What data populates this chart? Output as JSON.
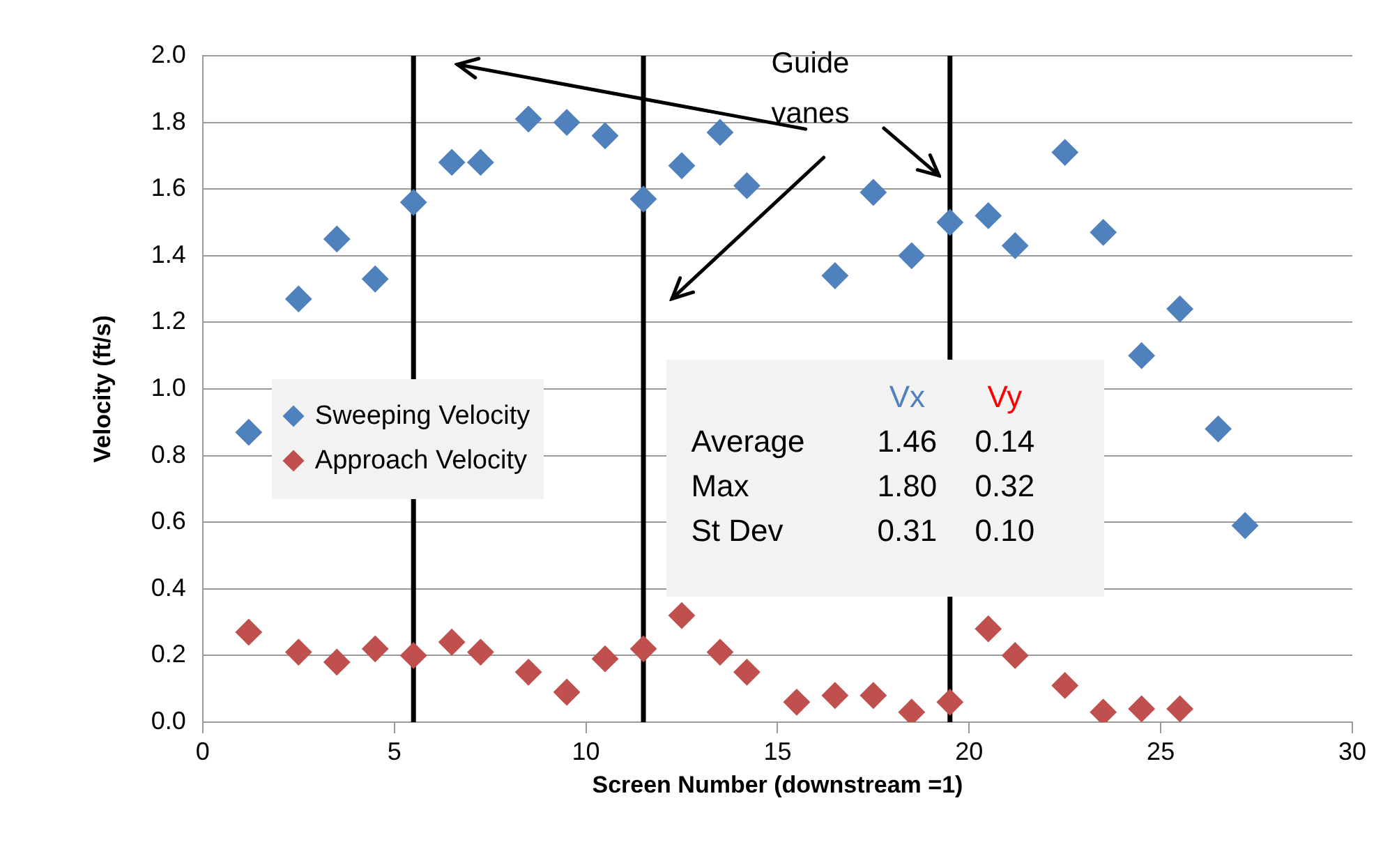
{
  "chart_data": {
    "type": "scatter",
    "xlabel": "Screen Number (downstream =1)",
    "ylabel": "Velocity (ft/s)",
    "series": [
      {
        "name": "Sweeping Velocity",
        "color": "#4f81bd",
        "x": [
          1.2,
          2.5,
          3.5,
          4.5,
          5.5,
          6.5,
          7.25,
          8.5,
          9.5,
          10.5,
          11.5,
          12.5,
          13.5,
          14.2,
          16.5,
          17.5,
          18.5,
          19.5,
          20.5,
          21.2,
          22.5,
          23.5,
          24.5,
          25.5,
          26.5,
          27.2
        ],
        "values": [
          0.87,
          1.27,
          1.45,
          1.33,
          1.56,
          1.68,
          1.68,
          1.81,
          1.8,
          1.76,
          1.57,
          1.67,
          1.77,
          1.61,
          1.34,
          1.59,
          1.4,
          1.5,
          1.52,
          1.43,
          1.71,
          1.47,
          1.1,
          1.24,
          0.88,
          0.59
        ]
      },
      {
        "name": "Approach Velocity",
        "color": "#c0504d",
        "x": [
          1.2,
          2.5,
          3.5,
          4.5,
          5.5,
          6.5,
          7.25,
          8.5,
          9.5,
          10.5,
          11.5,
          12.5,
          13.5,
          14.2,
          15.5,
          16.5,
          17.5,
          18.5,
          19.5,
          20.5,
          21.2,
          22.5,
          23.5,
          24.5,
          25.5
        ],
        "values": [
          0.27,
          0.21,
          0.18,
          0.22,
          0.2,
          0.24,
          0.21,
          0.15,
          0.09,
          0.19,
          0.22,
          0.32,
          0.21,
          0.15,
          0.06,
          0.08,
          0.08,
          0.03,
          0.06,
          0.28,
          0.2,
          0.11,
          0.03,
          0.04,
          0.04
        ]
      }
    ],
    "xlim": [
      0,
      30
    ],
    "xticks": [
      0,
      5,
      10,
      15,
      20,
      25,
      30
    ],
    "ylim": [
      0,
      2
    ],
    "yticks": [
      {
        "value": 0,
        "label": "0.0"
      },
      {
        "value": 0.2,
        "label": "0.2"
      },
      {
        "value": 0.4,
        "label": "0.4"
      },
      {
        "value": 0.6,
        "label": "0.6"
      },
      {
        "value": 0.8,
        "label": "0.8"
      },
      {
        "value": 1,
        "label": "1.0"
      },
      {
        "value": 1.2,
        "label": "1.2"
      },
      {
        "value": 1.4,
        "label": "1.4"
      },
      {
        "value": 1.6,
        "label": "1.6"
      },
      {
        "value": 1.8,
        "label": "1.8"
      },
      {
        "value": 2,
        "label": "2.0"
      }
    ],
    "grid": "y",
    "legend": "left",
    "marker": "diamond",
    "ref_lines": [
      {
        "axis": "x",
        "value": 5.5,
        "color": "#000000"
      },
      {
        "axis": "x",
        "value": 11.5,
        "color": "#000000"
      },
      {
        "axis": "x",
        "value": 19.5,
        "color": "#000000"
      }
    ],
    "annotations": [
      "Guide vanes",
      "Vx",
      "Vy",
      "Average",
      "1.46",
      "0.14",
      "Max",
      "1.80",
      "0.32",
      "St Dev",
      "0.31",
      "0.10"
    ]
  }
}
